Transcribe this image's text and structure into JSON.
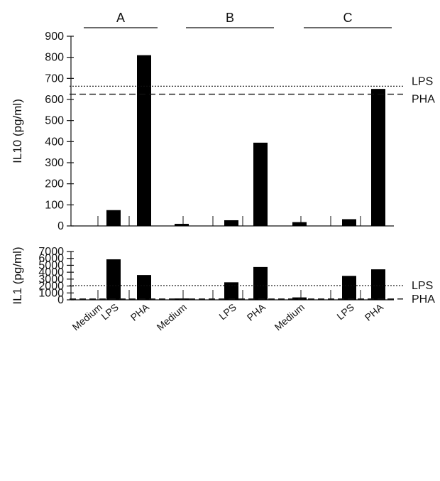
{
  "chart_data": [
    {
      "type": "bar",
      "ylabel": "IL10 (pg/ml)",
      "ylim": [
        0,
        900
      ],
      "yticks": [
        0,
        100,
        200,
        300,
        400,
        500,
        600,
        700,
        800,
        900
      ],
      "groups": [
        "A",
        "B",
        "C"
      ],
      "categories": [
        "Medium",
        "LPS",
        "PHA"
      ],
      "values": [
        [
          0,
          75,
          810
        ],
        [
          10,
          27,
          395
        ],
        [
          18,
          32,
          650
        ]
      ],
      "reference_lines": [
        {
          "label": "LPS",
          "value": 663,
          "style": "dotted"
        },
        {
          "label": "PHA",
          "value": 625,
          "style": "dashed"
        }
      ],
      "grid": false
    },
    {
      "type": "bar",
      "ylabel": "IL1 (pg/ml)",
      "ylim": [
        0,
        7000
      ],
      "yticks": [
        0,
        1000,
        2000,
        3000,
        4000,
        5000,
        6000,
        7000
      ],
      "groups": [
        "A",
        "B",
        "C"
      ],
      "categories": [
        "Medium",
        "LPS",
        "PHA"
      ],
      "values": [
        [
          0,
          5870,
          3590
        ],
        [
          200,
          2540,
          4750
        ],
        [
          350,
          3470,
          4420
        ]
      ],
      "reference_lines": [
        {
          "label": "LPS",
          "value": 2070,
          "style": "dotted"
        },
        {
          "label": "PHA",
          "value": 120,
          "style": "dashed"
        }
      ],
      "grid": false
    }
  ]
}
